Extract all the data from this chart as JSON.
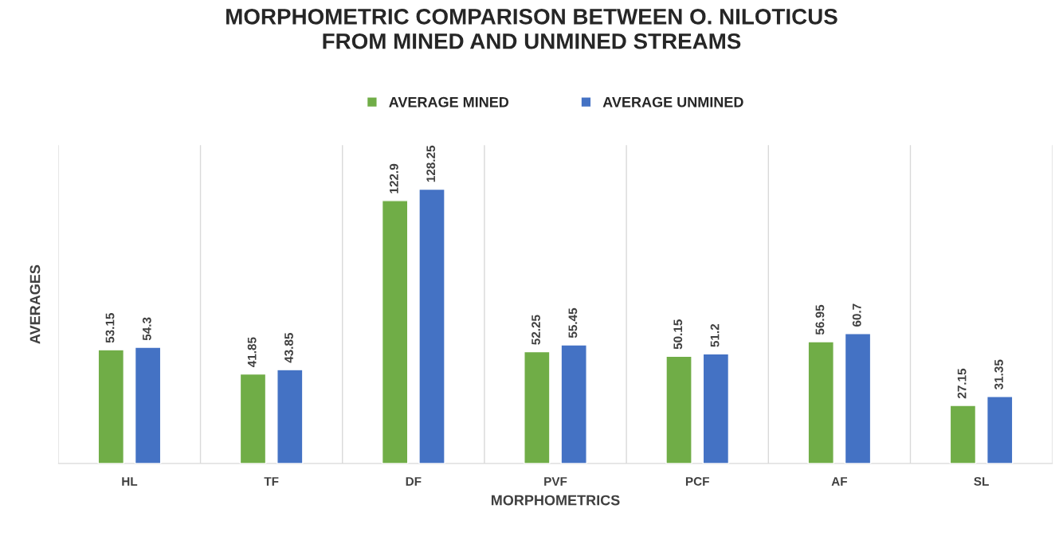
{
  "chart_data": {
    "type": "bar",
    "title": "MORPHOMETRIC COMPARISON BETWEEN O. NILOTICUS\nFROM MINED AND UNMINED STREAMS",
    "xlabel": "MORPHOMETRICS",
    "ylabel": "AVERAGES",
    "categories": [
      "HL",
      "TF",
      "DF",
      "PVF",
      "PCF",
      "AF",
      "SL"
    ],
    "series": [
      {
        "name": "AVERAGE MINED",
        "color": "#70ad47",
        "values": [
          53.15,
          41.85,
          122.9,
          52.25,
          50.15,
          56.95,
          27.15
        ]
      },
      {
        "name": "AVERAGE UNMINED",
        "color": "#4472c4",
        "values": [
          54.3,
          43.85,
          128.25,
          55.45,
          51.2,
          60.7,
          31.35
        ]
      }
    ],
    "data_labels": true,
    "grid": "x",
    "legend": "top"
  }
}
